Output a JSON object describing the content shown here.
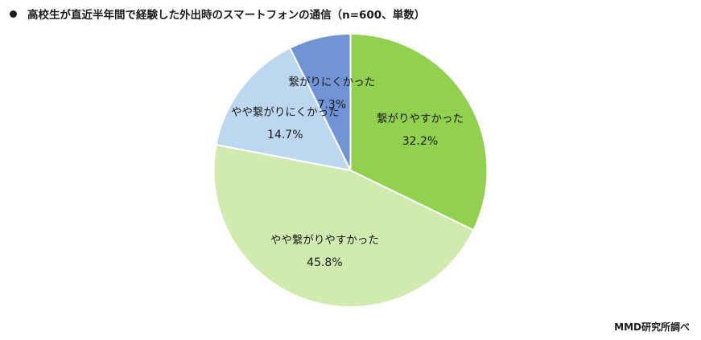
{
  "chart_data": {
    "type": "pie",
    "title": "高校生が直近半年間で経験した外出時のスマートフォンの通信（n=600、単数）",
    "slices": [
      {
        "label": "繋がりやすかった",
        "value": 32.2,
        "value_text": "32.2%",
        "color": "#92d050"
      },
      {
        "label": "やや繋がりやすかった",
        "value": 45.8,
        "value_text": "45.8%",
        "color": "#d0eab0"
      },
      {
        "label": "やや繋がりにくかった",
        "value": 14.7,
        "value_text": "14.7%",
        "color": "#bdd7ee"
      },
      {
        "label": "繋がりにくかった",
        "value": 7.3,
        "value_text": "7.3%",
        "color": "#7094d6"
      }
    ],
    "start": "12 o'clock",
    "direction": "clockwise",
    "legend": "none",
    "data_labels": "inside"
  },
  "source": "MMD研究所調べ"
}
